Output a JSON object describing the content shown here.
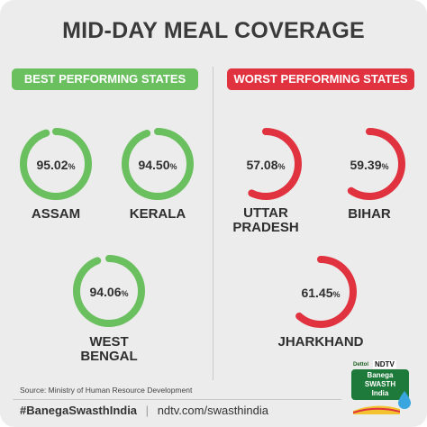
{
  "title": "MID-DAY MEAL COVERAGE",
  "sections": {
    "best": "BEST PERFORMING STATES",
    "worst": "WORST PERFORMING STATES"
  },
  "colors": {
    "best": "#6abf5e",
    "worst": "#e0323f",
    "track": "#ececec",
    "text": "#2f2f2f"
  },
  "chart_data": {
    "type": "donut",
    "unit": "%",
    "groups": [
      {
        "name": "BEST PERFORMING STATES",
        "color": "#6abf5e",
        "states": [
          {
            "label_lines": [
              "ASSAM"
            ],
            "value": 95.02,
            "value_label": "95.02"
          },
          {
            "label_lines": [
              "KERALA"
            ],
            "value": 94.5,
            "value_label": "94.50"
          },
          {
            "label_lines": [
              "WEST",
              "BENGAL"
            ],
            "value": 94.06,
            "value_label": "94.06"
          }
        ]
      },
      {
        "name": "WORST PERFORMING STATES",
        "color": "#e0323f",
        "states": [
          {
            "label_lines": [
              "UTTAR",
              "PRADESH"
            ],
            "value": 57.08,
            "value_label": "57.08"
          },
          {
            "label_lines": [
              "BIHAR"
            ],
            "value": 59.39,
            "value_label": "59.39"
          },
          {
            "label_lines": [
              "JHARKHAND"
            ],
            "value": 61.45,
            "value_label": "61.45"
          }
        ]
      }
    ]
  },
  "source": "Source: Ministry of Human Resource Development",
  "footer": {
    "hashtag": "#BanegaSwasthIndia",
    "separator": "|",
    "url": "ndtv.com/swasthindia"
  },
  "logo": {
    "top_text": "Dettol",
    "brand": "NDTV",
    "line1": "Banega",
    "line2": "SWASTH",
    "line3": "India",
    "icon": "water-drop-icon"
  }
}
